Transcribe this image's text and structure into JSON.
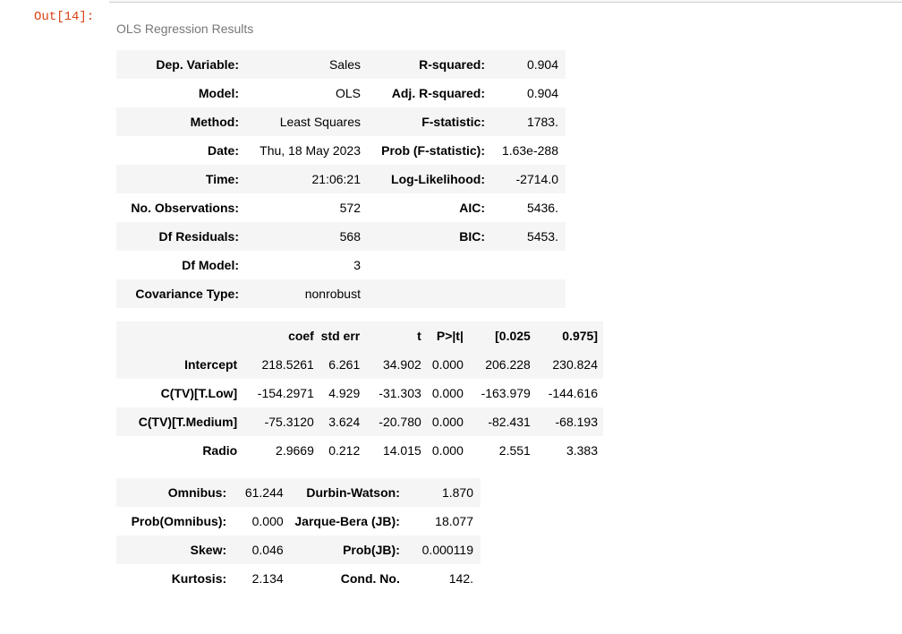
{
  "cell": {
    "prompt": "Out[14]:",
    "caption": "OLS Regression Results"
  },
  "summary": [
    {
      "k1": "Dep. Variable:",
      "v1": "Sales",
      "k2": "R-squared:",
      "v2": "0.904"
    },
    {
      "k1": "Model:",
      "v1": "OLS",
      "k2": "Adj. R-squared:",
      "v2": "0.904"
    },
    {
      "k1": "Method:",
      "v1": "Least Squares",
      "k2": "F-statistic:",
      "v2": "1783."
    },
    {
      "k1": "Date:",
      "v1": "Thu, 18 May 2023",
      "k2": "Prob (F-statistic):",
      "v2": "1.63e-288"
    },
    {
      "k1": "Time:",
      "v1": "21:06:21",
      "k2": "Log-Likelihood:",
      "v2": "-2714.0"
    },
    {
      "k1": "No. Observations:",
      "v1": "572",
      "k2": "AIC:",
      "v2": "5436."
    },
    {
      "k1": "Df Residuals:",
      "v1": "568",
      "k2": "BIC:",
      "v2": "5453."
    },
    {
      "k1": "Df Model:",
      "v1": "3",
      "k2": "",
      "v2": ""
    },
    {
      "k1": "Covariance Type:",
      "v1": "nonrobust",
      "k2": "",
      "v2": ""
    }
  ],
  "coef_table": {
    "headers": [
      "coef",
      "std err",
      "t",
      "P>|t|",
      "[0.025",
      "0.975]"
    ],
    "rows": [
      {
        "name": "Intercept",
        "values": [
          "218.5261",
          "6.261",
          "34.902",
          "0.000",
          "206.228",
          "230.824"
        ]
      },
      {
        "name": "C(TV)[T.Low]",
        "values": [
          "-154.2971",
          "4.929",
          "-31.303",
          "0.000",
          "-163.979",
          "-144.616"
        ]
      },
      {
        "name": "C(TV)[T.Medium]",
        "values": [
          "-75.3120",
          "3.624",
          "-20.780",
          "0.000",
          "-82.431",
          "-68.193"
        ]
      },
      {
        "name": "Radio",
        "values": [
          "2.9669",
          "0.212",
          "14.015",
          "0.000",
          "2.551",
          "3.383"
        ]
      }
    ]
  },
  "diagnostics": [
    {
      "k1": "Omnibus:",
      "v1": "61.244",
      "k2": "Durbin-Watson:",
      "v2": "1.870"
    },
    {
      "k1": "Prob(Omnibus):",
      "v1": "0.000",
      "k2": "Jarque-Bera (JB):",
      "v2": "18.077"
    },
    {
      "k1": "Skew:",
      "v1": "0.046",
      "k2": "Prob(JB):",
      "v2": "0.000119"
    },
    {
      "k1": "Kurtosis:",
      "v1": "2.134",
      "k2": "Cond. No.",
      "v2": "142."
    }
  ]
}
